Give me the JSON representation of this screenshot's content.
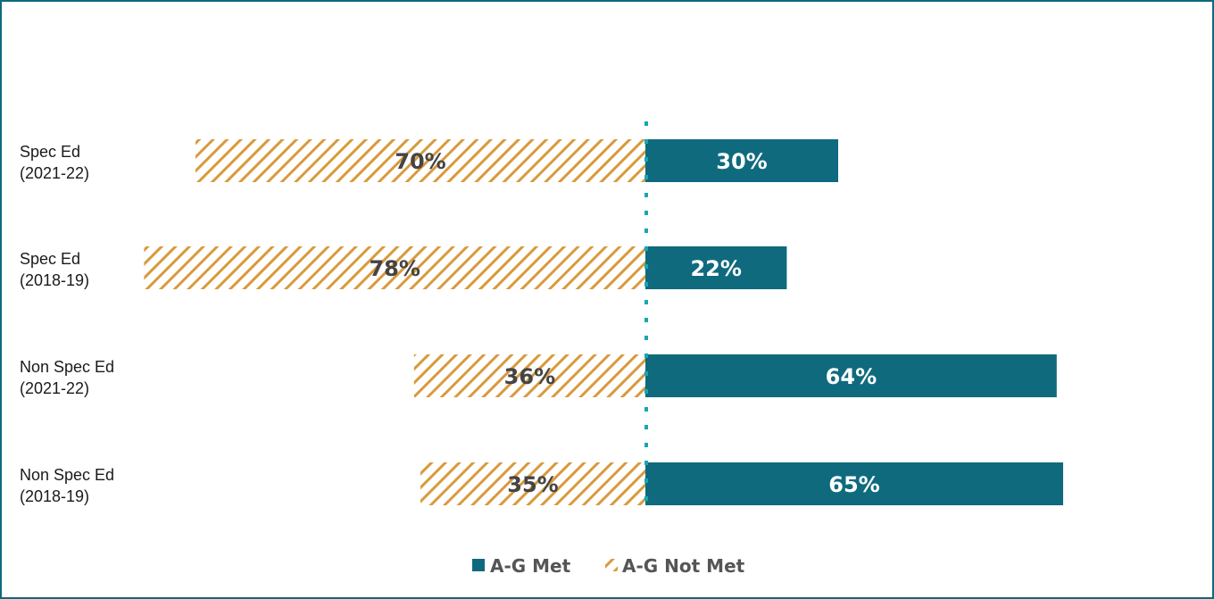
{
  "chart_data": {
    "type": "bar",
    "orientation": "horizontal-diverging",
    "categories": [
      [
        "Spec Ed",
        "(2021-22)"
      ],
      [
        "Spec Ed",
        "(2018-19)"
      ],
      [
        "Non Spec Ed",
        "(2021-22)"
      ],
      [
        "Non Spec Ed",
        "(2018-19)"
      ]
    ],
    "series": [
      {
        "name": "A-G Met",
        "values": [
          30,
          22,
          64,
          65
        ],
        "labels": [
          "30%",
          "22%",
          "64%",
          "65%"
        ],
        "color": "#106a7e",
        "label_color": "#ffffff",
        "pattern": "solid"
      },
      {
        "name": "A-G Not Met",
        "values": [
          70,
          78,
          36,
          35
        ],
        "labels": [
          "70%",
          "78%",
          "36%",
          "35%"
        ],
        "color": "#d89a3c",
        "label_color": "#444444",
        "pattern": "diagonal-hatch"
      }
    ],
    "divider_color": "#1aa6b0",
    "legend_position": "bottom",
    "grid": false
  }
}
